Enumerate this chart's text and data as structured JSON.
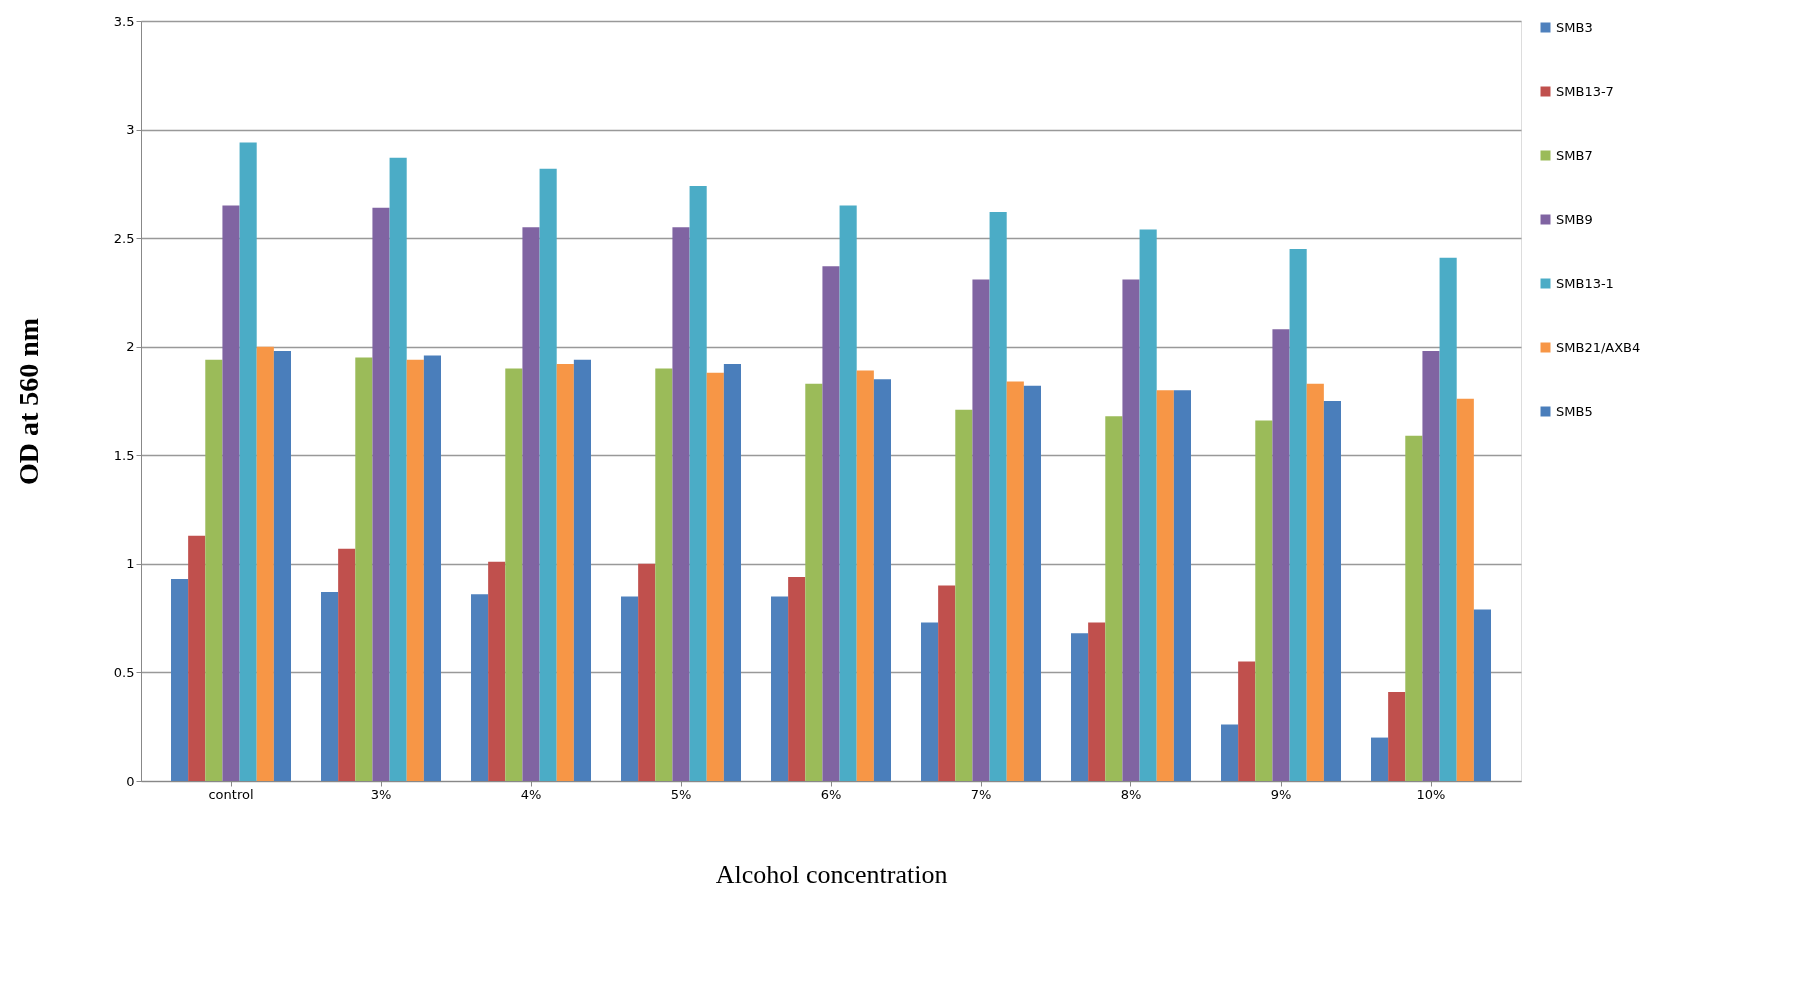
{
  "chart_data": {
    "type": "bar",
    "xlabel": "Alcohol concentration",
    "ylabel": "OD at 560 nm",
    "categories": [
      "control",
      "3%",
      "4%",
      "5%",
      "6%",
      "7%",
      "8%",
      "9%",
      "10%"
    ],
    "series": [
      {
        "name": "SMB3",
        "color": "#4f81bd",
        "values": [
          0.93,
          0.87,
          0.86,
          0.85,
          0.85,
          0.73,
          0.68,
          0.26,
          0.2
        ]
      },
      {
        "name": "SMB13-7",
        "color": "#c0504d",
        "values": [
          1.13,
          1.07,
          1.01,
          1.0,
          0.94,
          0.9,
          0.73,
          0.55,
          0.41
        ]
      },
      {
        "name": "SMB7",
        "color": "#9bbb59",
        "values": [
          1.94,
          1.95,
          1.9,
          1.9,
          1.83,
          1.71,
          1.68,
          1.66,
          1.59
        ]
      },
      {
        "name": "SMB9",
        "color": "#8064a2",
        "values": [
          2.65,
          2.64,
          2.55,
          2.55,
          2.37,
          2.31,
          2.31,
          2.08,
          1.98
        ]
      },
      {
        "name": "SMB13-1",
        "color": "#4bacc6",
        "values": [
          2.94,
          2.87,
          2.82,
          2.74,
          2.65,
          2.62,
          2.54,
          2.45,
          2.41
        ]
      },
      {
        "name": "SMB21/AXB4",
        "color": "#f79646",
        "values": [
          2.0,
          1.94,
          1.92,
          1.88,
          1.89,
          1.84,
          1.8,
          1.83,
          1.76
        ]
      },
      {
        "name": "SMB5",
        "color": "#4a7ebb",
        "values": [
          1.98,
          1.96,
          1.94,
          1.92,
          1.85,
          1.82,
          1.8,
          1.75,
          0.79
        ]
      }
    ],
    "ylim": [
      0,
      3.5
    ],
    "yticks": [
      0,
      0.5,
      1,
      1.5,
      2,
      2.5,
      3,
      3.5
    ],
    "grid": "y",
    "legend": "right"
  }
}
